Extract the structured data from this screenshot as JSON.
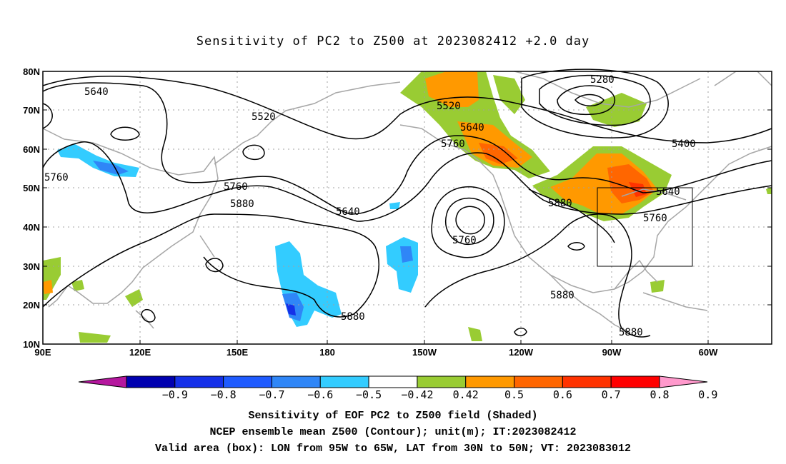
{
  "title": "Sensitivity of PC2 to Z500 at 2023082412 +2.0 day",
  "axes": {
    "lat_labels": [
      "80N",
      "70N",
      "60N",
      "50N",
      "40N",
      "30N",
      "20N",
      "10N"
    ],
    "lon_labels": [
      "90E",
      "120E",
      "150E",
      "180",
      "150W",
      "120W",
      "90W",
      "60W"
    ]
  },
  "map": {
    "region": {
      "lon_west": "90E",
      "lon_east": "35W",
      "lat_south": "10N",
      "lat_north": "80N"
    },
    "coastline_color": "#a6a6a6",
    "contour_color": "#000000",
    "grid": true
  },
  "contour_labels": [
    "5640",
    "5520",
    "5760",
    "5760",
    "5880",
    "5640",
    "5760",
    "5520",
    "5640",
    "5760",
    "5280",
    "5400",
    "5640",
    "5760",
    "5880",
    "5880",
    "5880",
    "5880"
  ],
  "box": {
    "lon_from": "95W",
    "lon_to": "65W",
    "lat_from": "30N",
    "lat_to": "50N"
  },
  "colorbar": {
    "ticks": [
      "-0.9",
      "-0.8",
      "-0.7",
      "-0.6",
      "-0.5",
      "-0.42",
      "0.42",
      "0.5",
      "0.6",
      "0.7",
      "0.8",
      "0.9"
    ],
    "colors": [
      "#b5179e",
      "#0000b0",
      "#1530e8",
      "#1f5bff",
      "#2f86f7",
      "#33ccff",
      "#ffffff",
      "#99cc33",
      "#ff9900",
      "#ff6600",
      "#ff3300",
      "#ff0000",
      "#ff99cc"
    ]
  },
  "captions": [
    "Sensitivity of EOF PC2 to Z500 field (Shaded)",
    "NCEP ensemble mean Z500 (Contour); unit(m); IT:2023082412",
    "Valid area (box): LON from 95W to 65W, LAT from 30N to 50N; VT: 2023083012"
  ]
}
